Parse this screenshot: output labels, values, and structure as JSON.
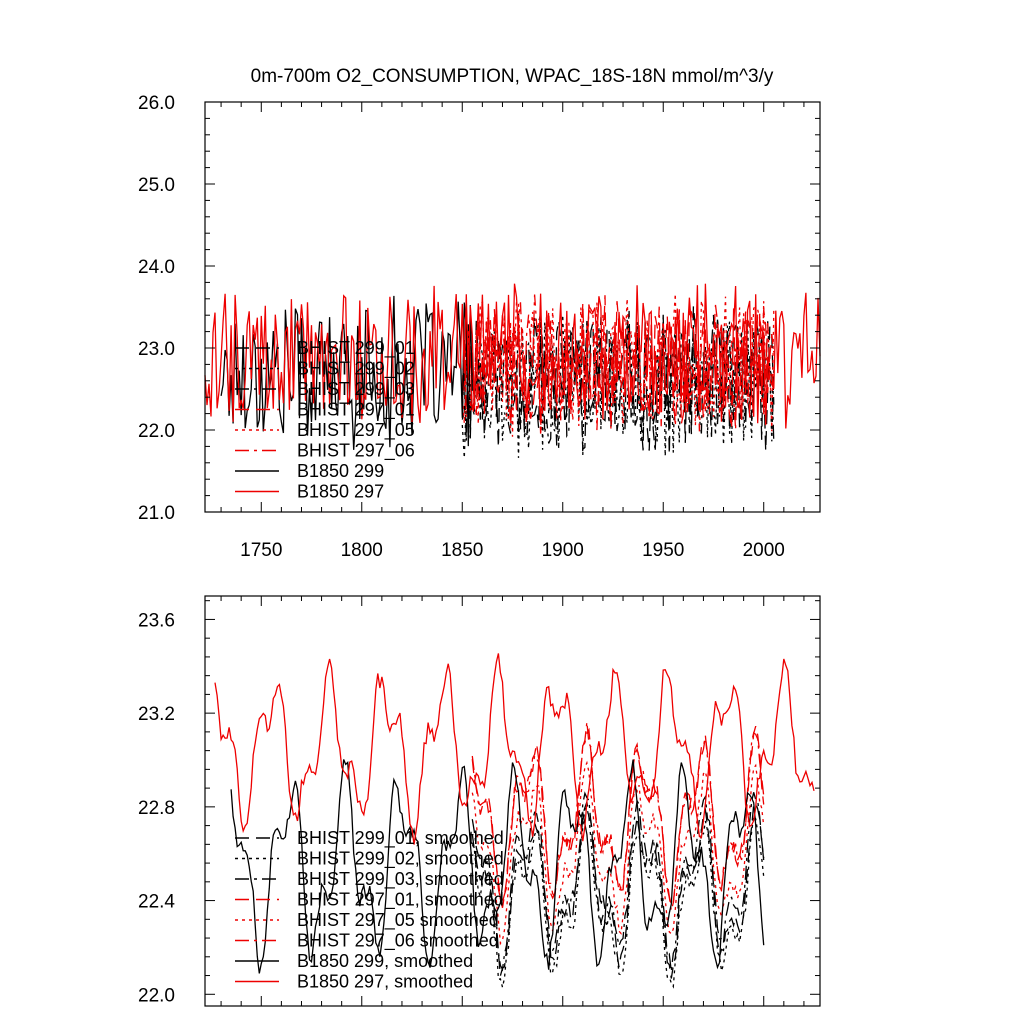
{
  "chart_data": [
    {
      "type": "line",
      "title": "0m-700m O2_CONSUMPTION, WPAC_18S-18N   mmol/m^3/y",
      "xlim": [
        1722,
        2028
      ],
      "ylim": [
        21.0,
        26.0
      ],
      "xticks": [
        1750,
        1800,
        1850,
        1900,
        1950,
        2000
      ],
      "yticks": [
        21.0,
        22.0,
        23.0,
        24.0,
        25.0,
        26.0
      ],
      "ytick_labels": [
        "21.0",
        "22.0",
        "23.0",
        "24.0",
        "25.0",
        "26.0"
      ],
      "series": [
        {
          "name": "BHIST 299_01",
          "color": "#000000",
          "dash": "long",
          "x_start": 1850,
          "x_end": 2005,
          "mean": 22.6,
          "amp": 0.75,
          "seed": 11
        },
        {
          "name": "BHIST 299_02",
          "color": "#000000",
          "dash": "dot",
          "x_start": 1850,
          "x_end": 2005,
          "mean": 22.5,
          "amp": 0.75,
          "seed": 12
        },
        {
          "name": "BHIST 299_03",
          "color": "#000000",
          "dash": "dashdot",
          "x_start": 1850,
          "x_end": 2005,
          "mean": 22.6,
          "amp": 0.75,
          "seed": 13
        },
        {
          "name": "BHIST 297_01",
          "color": "#ee0000",
          "dash": "long",
          "x_start": 1850,
          "x_end": 2005,
          "mean": 22.8,
          "amp": 0.75,
          "seed": 14
        },
        {
          "name": "BHIST 297_05",
          "color": "#ee0000",
          "dash": "dot",
          "x_start": 1850,
          "x_end": 2005,
          "mean": 22.8,
          "amp": 0.75,
          "seed": 15
        },
        {
          "name": "BHIST 297_06",
          "color": "#ee0000",
          "dash": "dashdot",
          "x_start": 1850,
          "x_end": 2005,
          "mean": 22.8,
          "amp": 0.75,
          "seed": 16
        },
        {
          "name": "B1850 299",
          "color": "#000000",
          "dash": "solid",
          "x_start": 1730,
          "x_end": 1855,
          "mean": 22.7,
          "amp": 0.8,
          "seed": 17
        },
        {
          "name": "B1850 297",
          "color": "#ee0000",
          "dash": "solid",
          "x_start": 1722,
          "x_end": 2028,
          "mean": 22.9,
          "amp": 0.75,
          "seed": 18
        }
      ],
      "legend_position": "lower-left"
    },
    {
      "type": "line",
      "title": "",
      "xlim": [
        1722,
        2028
      ],
      "ylim": [
        21.95,
        23.7
      ],
      "xticks": [
        1750,
        1800,
        1850,
        1900,
        1950,
        2000
      ],
      "yticks": [
        22.0,
        22.4,
        22.8,
        23.2,
        23.6
      ],
      "ytick_labels": [
        "22.0",
        "22.4",
        "22.8",
        "23.2",
        "23.6"
      ],
      "series": [
        {
          "name": "BHIST 299_01, smoothed",
          "color": "#000000",
          "dash": "long",
          "x_start": 1855,
          "x_end": 2000,
          "mean": 22.45,
          "amp": 0.25,
          "seed": 21
        },
        {
          "name": "BHIST 299_02, smoothed",
          "color": "#000000",
          "dash": "dot",
          "x_start": 1855,
          "x_end": 2000,
          "mean": 22.4,
          "amp": 0.25,
          "seed": 22
        },
        {
          "name": "BHIST 299_03, smoothed",
          "color": "#000000",
          "dash": "dashdot",
          "x_start": 1855,
          "x_end": 2000,
          "mean": 22.5,
          "amp": 0.25,
          "seed": 23
        },
        {
          "name": "BHIST 297_01, smoothed",
          "color": "#ee0000",
          "dash": "long",
          "x_start": 1855,
          "x_end": 2000,
          "mean": 22.75,
          "amp": 0.25,
          "seed": 24
        },
        {
          "name": "BHIST 297_05 smoothed",
          "color": "#ee0000",
          "dash": "dot",
          "x_start": 1855,
          "x_end": 2000,
          "mean": 22.6,
          "amp": 0.25,
          "seed": 25
        },
        {
          "name": "BHIST 297_06 smoothed",
          "color": "#ee0000",
          "dash": "dashdot",
          "x_start": 1855,
          "x_end": 2000,
          "mean": 22.75,
          "amp": 0.25,
          "seed": 26
        },
        {
          "name": "B1850 299, smoothed",
          "color": "#000000",
          "dash": "solid",
          "x_start": 1735,
          "x_end": 2000,
          "mean": 22.55,
          "amp": 0.3,
          "seed": 27
        },
        {
          "name": "B1850 297, smoothed",
          "color": "#ee0000",
          "dash": "solid",
          "x_start": 1727,
          "x_end": 2025,
          "mean": 23.05,
          "amp": 0.25,
          "seed": 28
        }
      ],
      "legend_position": "lower-left"
    }
  ]
}
